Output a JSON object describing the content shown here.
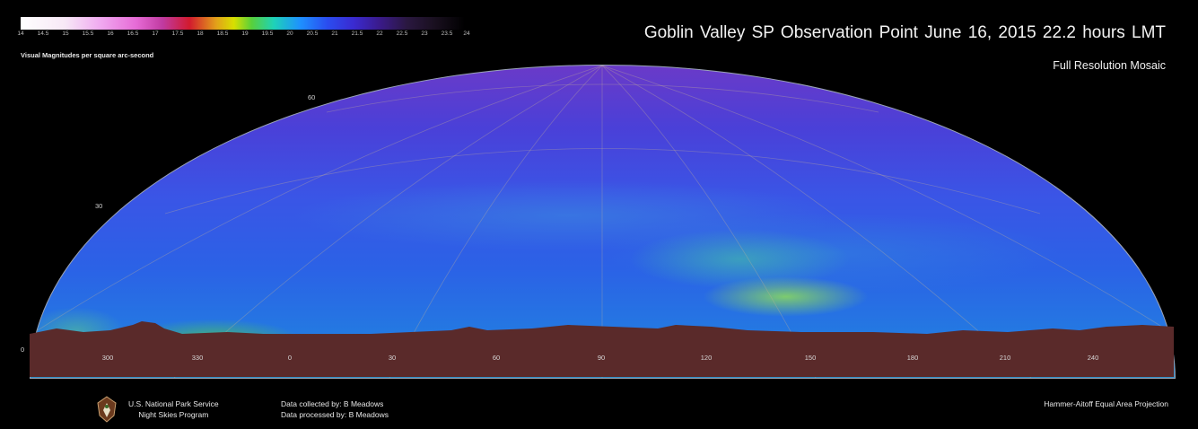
{
  "header": {
    "title": "Goblin Valley SP   Observation Point   June 16, 2015   22.2 hours LMT",
    "subtitle": "Full Resolution Mosaic"
  },
  "colorbar": {
    "caption": "Visual Magnitudes per square arc-second",
    "ticks": [
      "14",
      "14.5",
      "15",
      "15.5",
      "16",
      "16.5",
      "17",
      "17.5",
      "18",
      "18.5",
      "19",
      "19.5",
      "20",
      "20.5",
      "21",
      "21.5",
      "22",
      "22.5",
      "23",
      "23.5",
      "24"
    ]
  },
  "azimuth_labels": [
    "300",
    "330",
    "0",
    "30",
    "60",
    "90",
    "120",
    "150",
    "180",
    "210",
    "240"
  ],
  "altitude_labels": [
    "60",
    "30",
    "0"
  ],
  "footer": {
    "nps_line1": "U.S. National Park Service",
    "nps_line2": "Night Skies Program",
    "collected": "Data collected by: B Meadows",
    "processed": "Data processed by: B Meadows",
    "projection": "Hammer-Aitoff Equal Area Projection"
  },
  "colors": {
    "background": "#000000",
    "sky_top": "#6a3ac8",
    "sky_mid": "#2b62e6",
    "milky_way_core": "#8cdc5a",
    "ground": "#4a2020"
  }
}
